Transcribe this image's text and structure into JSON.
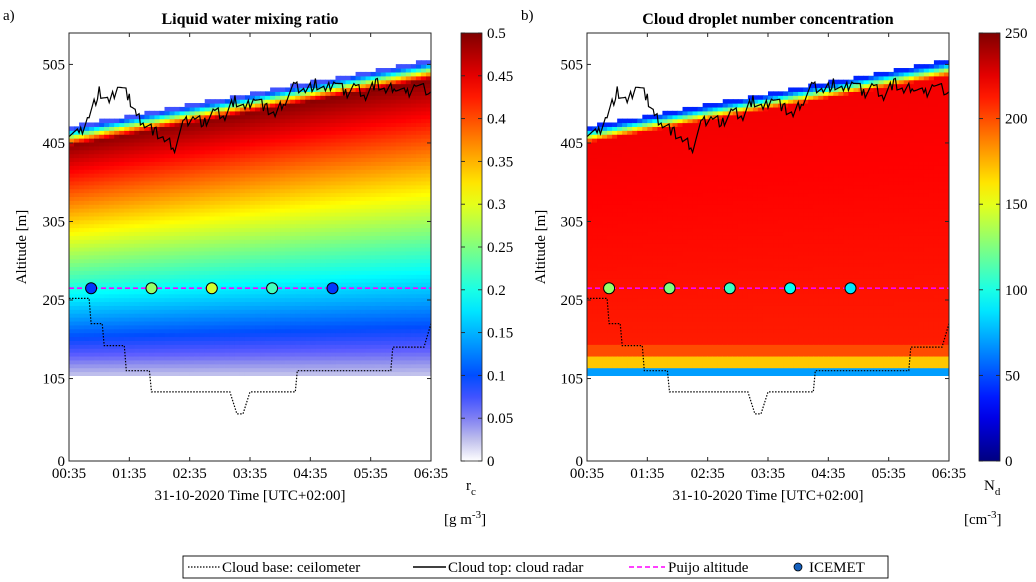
{
  "chart_data": [
    {
      "type": "heatmap",
      "panel_label": "a)",
      "title": "Liquid water mixing ratio",
      "xlabel": "31-10-2020 Time [UTC+02:00]",
      "ylabel": "Altitude [m]",
      "x_ticks": [
        "00:35",
        "01:35",
        "02:35",
        "03:35",
        "04:35",
        "05:35",
        "06:35"
      ],
      "y_ticks": [
        0,
        105,
        205,
        305,
        405,
        505
      ],
      "ylim": [
        0,
        545
      ],
      "colorbar": {
        "label": "r",
        "label_sub": "c",
        "units_pre": "[g m",
        "units_sup": "-3",
        "units_post": "]",
        "range": [
          0,
          0.5
        ],
        "ticks": [
          0,
          0.05,
          0.1,
          0.15,
          0.2,
          0.25,
          0.3,
          0.35,
          0.4,
          0.45,
          0.5
        ],
        "tick_labels": [
          "0",
          "0.05",
          "0.1",
          "0.15",
          "0.2",
          "0.25",
          "0.3",
          "0.35",
          "0.4",
          "0.45",
          "0.5"
        ]
      },
      "puijo_altitude": 220,
      "icemet_points": [
        {
          "time": "00:57",
          "value": 0.09
        },
        {
          "time": "01:57",
          "value": 0.26
        },
        {
          "time": "02:57",
          "value": 0.29
        },
        {
          "time": "03:57",
          "value": 0.22
        },
        {
          "time": "04:57",
          "value": 0.09
        }
      ]
    },
    {
      "type": "heatmap",
      "panel_label": "b)",
      "title": "Cloud droplet number concentration",
      "xlabel": "31-10-2020 Time [UTC+02:00]",
      "ylabel": "Altitude [m]",
      "x_ticks": [
        "00:35",
        "01:35",
        "02:35",
        "03:35",
        "04:35",
        "05:35",
        "06:35"
      ],
      "y_ticks": [
        0,
        105,
        205,
        305,
        405,
        505
      ],
      "ylim": [
        0,
        545
      ],
      "colorbar": {
        "label": "N",
        "label_sub": "d",
        "units_pre": "[cm",
        "units_sup": "-3",
        "units_post": "]",
        "range": [
          0,
          250
        ],
        "ticks": [
          0,
          50,
          100,
          150,
          200,
          250
        ],
        "tick_labels": [
          "0",
          "50",
          "100",
          "150",
          "200",
          "250"
        ]
      },
      "puijo_altitude": 220,
      "icemet_points": [
        {
          "time": "00:57",
          "value": 130
        },
        {
          "time": "01:57",
          "value": 125
        },
        {
          "time": "02:57",
          "value": 108
        },
        {
          "time": "03:57",
          "value": 95
        },
        {
          "time": "04:57",
          "value": 88
        }
      ]
    }
  ],
  "series": {
    "cloud_base_ceilometer": {
      "name": "Cloud base: ceilometer",
      "points": [
        [
          "00:35",
          207
        ],
        [
          "00:55",
          207
        ],
        [
          "00:57",
          175
        ],
        [
          "01:08",
          175
        ],
        [
          "01:10",
          147
        ],
        [
          "01:30",
          147
        ],
        [
          "01:32",
          115
        ],
        [
          "01:55",
          115
        ],
        [
          "01:57",
          88
        ],
        [
          "03:15",
          88
        ],
        [
          "03:22",
          60
        ],
        [
          "03:28",
          60
        ],
        [
          "03:35",
          88
        ],
        [
          "04:20",
          88
        ],
        [
          "04:22",
          115
        ],
        [
          "05:55",
          115
        ],
        [
          "05:57",
          145
        ],
        [
          "06:28",
          145
        ],
        [
          "06:35",
          175
        ]
      ]
    },
    "cloud_top_radar": {
      "name": "Cloud top: cloud radar",
      "points": [
        [
          "00:35",
          420
        ],
        [
          "00:45",
          415
        ],
        [
          "00:55",
          440
        ],
        [
          "01:05",
          470
        ],
        [
          "01:15",
          455
        ],
        [
          "01:25",
          480
        ],
        [
          "01:35",
          462
        ],
        [
          "01:42",
          440
        ],
        [
          "01:50",
          430
        ],
        [
          "02:00",
          420
        ],
        [
          "02:10",
          408
        ],
        [
          "02:20",
          400
        ],
        [
          "02:30",
          432
        ],
        [
          "02:40",
          438
        ],
        [
          "02:50",
          430
        ],
        [
          "03:00",
          445
        ],
        [
          "03:10",
          438
        ],
        [
          "03:20",
          460
        ],
        [
          "03:30",
          448
        ],
        [
          "03:40",
          465
        ],
        [
          "03:50",
          450
        ],
        [
          "04:00",
          440
        ],
        [
          "04:10",
          460
        ],
        [
          "04:20",
          478
        ],
        [
          "04:30",
          472
        ],
        [
          "04:40",
          480
        ],
        [
          "04:50",
          470
        ],
        [
          "05:00",
          485
        ],
        [
          "05:10",
          468
        ],
        [
          "05:20",
          478
        ],
        [
          "05:30",
          465
        ],
        [
          "05:40",
          482
        ],
        [
          "05:50",
          470
        ],
        [
          "06:00",
          478
        ],
        [
          "06:10",
          466
        ],
        [
          "06:20",
          480
        ],
        [
          "06:35",
          470
        ]
      ]
    }
  },
  "legend": {
    "items": [
      {
        "label": "Cloud base: ceilometer",
        "style": "dotted",
        "color": "#000000"
      },
      {
        "label": "Cloud top: cloud radar",
        "style": "solid",
        "color": "#000000"
      },
      {
        "label": "Puijo altitude",
        "style": "dashed",
        "color": "#ff00ff"
      },
      {
        "label": "ICEMET",
        "style": "marker",
        "color": "#1560bd"
      }
    ]
  },
  "colors": {
    "puijo_line": "#ff00ff",
    "axis": "#262626"
  }
}
